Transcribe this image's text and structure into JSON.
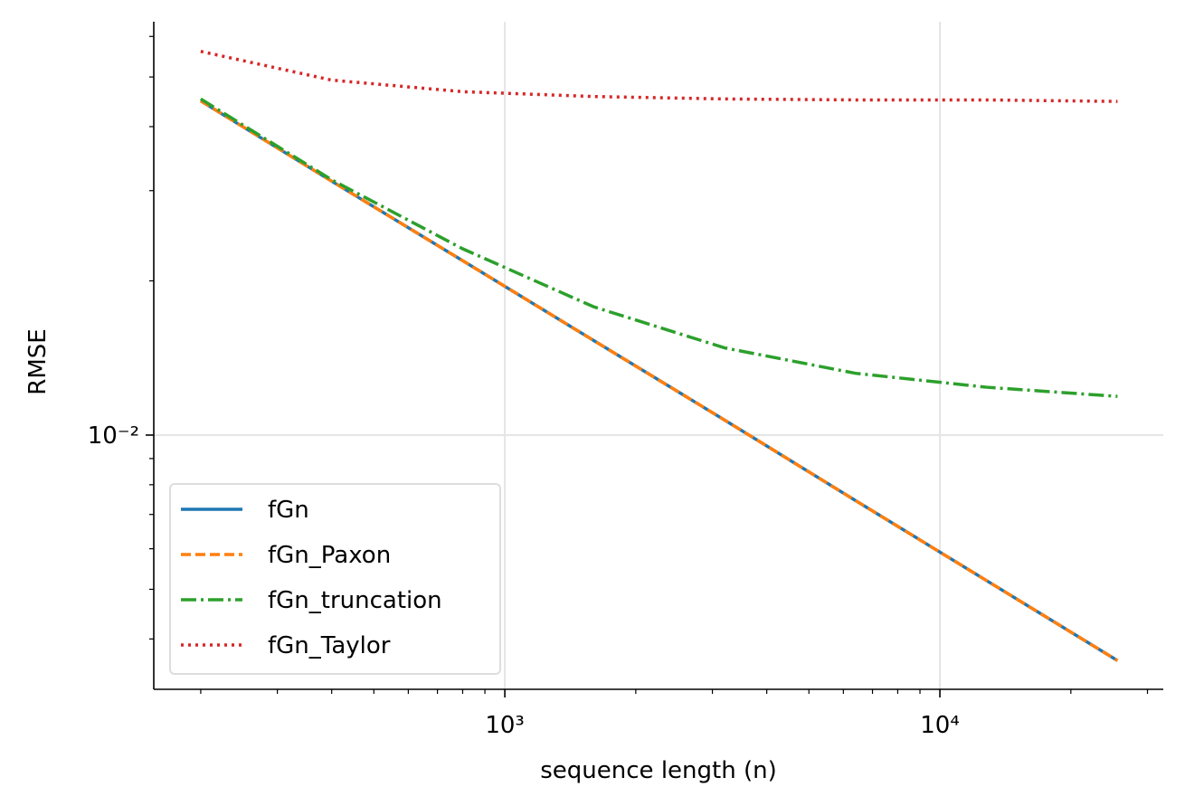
{
  "chart_data": {
    "type": "line",
    "xlabel": "sequence length (n)",
    "ylabel": "RMSE",
    "xscale": "log",
    "yscale": "log",
    "x": [
      200,
      400,
      800,
      1600,
      3200,
      6400,
      12800,
      25600
    ],
    "series": [
      {
        "name": "fGn",
        "color": "#1f77b4",
        "linestyle": "solid",
        "values": [
          0.0449,
          0.0313,
          0.0219,
          0.0153,
          0.0107,
          0.00745,
          0.0052,
          0.00363
        ]
      },
      {
        "name": "fGn_Paxon",
        "color": "#ff7f0e",
        "linestyle": "dashed",
        "values": [
          0.0449,
          0.0313,
          0.0219,
          0.0153,
          0.0107,
          0.00745,
          0.0052,
          0.00363
        ]
      },
      {
        "name": "fGn_truncation",
        "color": "#2ca02c",
        "linestyle": "dashdot",
        "values": [
          0.0453,
          0.0315,
          0.0231,
          0.0178,
          0.0148,
          0.0132,
          0.0124,
          0.0119
        ]
      },
      {
        "name": "fGn_Taylor",
        "color": "#d62728",
        "linestyle": "dotted",
        "values": [
          0.0561,
          0.0493,
          0.0468,
          0.0458,
          0.0453,
          0.0451,
          0.0451,
          0.0448
        ]
      }
    ],
    "xlim": [
      156,
      32620
    ],
    "ylim": [
      0.00319,
      0.0641
    ],
    "xticks": [
      {
        "value": 1000,
        "label": "10³"
      },
      {
        "value": 10000,
        "label": "10⁴"
      }
    ],
    "yticks": [
      {
        "value": 0.01,
        "label": "10⁻²"
      }
    ],
    "xminorticks": [
      200,
      300,
      400,
      500,
      600,
      700,
      800,
      900,
      2000,
      3000,
      4000,
      5000,
      6000,
      7000,
      8000,
      9000,
      20000,
      30000
    ],
    "yminorticks": [
      0.004,
      0.005,
      0.006,
      0.007,
      0.008,
      0.009,
      0.02,
      0.03,
      0.04,
      0.05,
      0.06
    ],
    "grid": true,
    "legend": "lower left"
  }
}
